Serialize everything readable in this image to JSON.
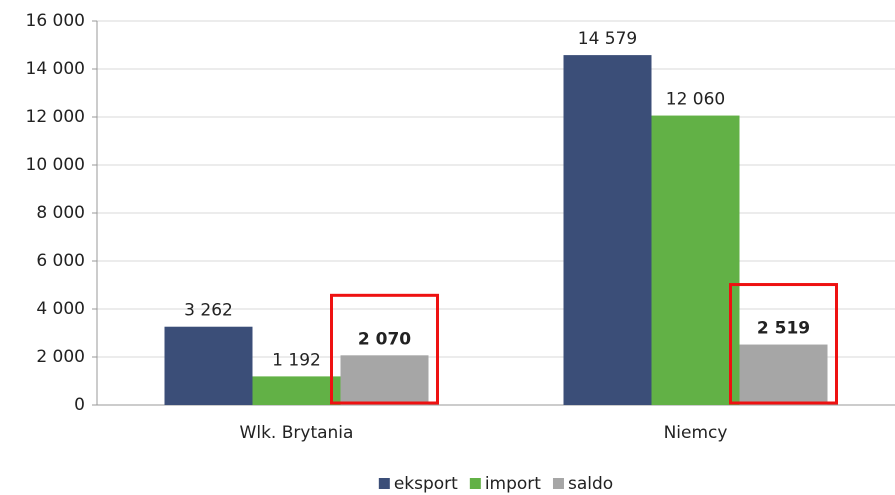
{
  "chart_data": {
    "type": "bar",
    "categories": [
      "Wlk. Brytania",
      "Niemcy"
    ],
    "series": [
      {
        "name": "eksport",
        "color": "#3b4e78",
        "values": [
          3262,
          14579
        ],
        "value_labels": [
          "3 262",
          "14 579"
        ]
      },
      {
        "name": "import",
        "color": "#62b146",
        "values": [
          1192,
          12060
        ],
        "value_labels": [
          "1 192",
          "12 060"
        ]
      },
      {
        "name": "saldo",
        "color": "#a6a6a6",
        "values": [
          2070,
          2519
        ],
        "value_labels": [
          "2 070",
          "2 519"
        ]
      }
    ],
    "ylim": [
      0,
      16000
    ],
    "yticks": [
      0,
      {
        "value": 2000,
        "label": "2 000"
      },
      {
        "value": 4000,
        "label": "4 000"
      },
      {
        "value": 6000,
        "label": "6 000"
      },
      {
        "value": 8000,
        "label": "8 000"
      },
      {
        "value": 10000,
        "label": "10 000"
      },
      {
        "value": 12000,
        "label": "12 000"
      },
      {
        "value": 14000,
        "label": "14 000"
      },
      {
        "value": 16000,
        "label": "16 000"
      }
    ],
    "grid": true,
    "legend": "bottom"
  }
}
